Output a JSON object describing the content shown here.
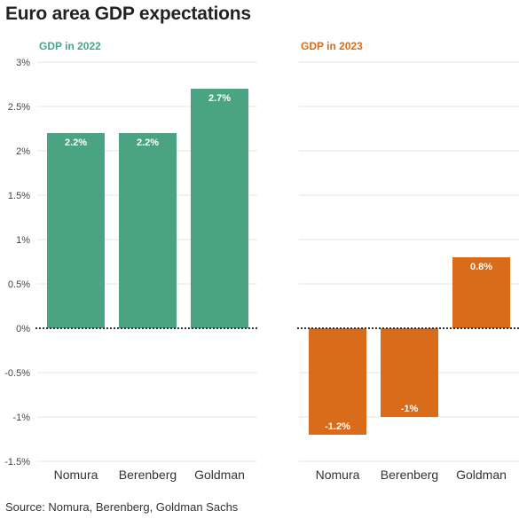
{
  "title": "Euro area GDP expectations",
  "source": "Source: Nomura, Berenberg, Goldman Sachs",
  "chart_data": [
    {
      "type": "bar",
      "title": "GDP in 2022",
      "color": "#4aa482",
      "categories": [
        "Nomura",
        "Berenberg",
        "Goldman"
      ],
      "values": [
        2.2,
        2.2,
        2.7
      ],
      "data_labels": [
        "2.2%",
        "2.2%",
        "2.7%"
      ],
      "ylim": [
        -1.5,
        3
      ],
      "yticks": [
        3,
        2.5,
        2,
        1.5,
        1,
        0.5,
        0,
        -0.5,
        -1,
        -1.5
      ],
      "ytick_labels": [
        "3%",
        "2.5%",
        "2%",
        "1.5%",
        "1%",
        "0.5%",
        "0%",
        "-0.5%",
        "-1%",
        "-1.5%"
      ],
      "grid": true,
      "xlabel": "",
      "ylabel": ""
    },
    {
      "type": "bar",
      "title": "GDP in 2023",
      "color": "#d96c1b",
      "categories": [
        "Nomura",
        "Berenberg",
        "Goldman"
      ],
      "values": [
        -1.2,
        -1,
        0.8
      ],
      "data_labels": [
        "-1.2%",
        "-1%",
        "0.8%"
      ],
      "ylim": [
        -1.5,
        3
      ],
      "grid": true,
      "xlabel": "",
      "ylabel": ""
    }
  ]
}
